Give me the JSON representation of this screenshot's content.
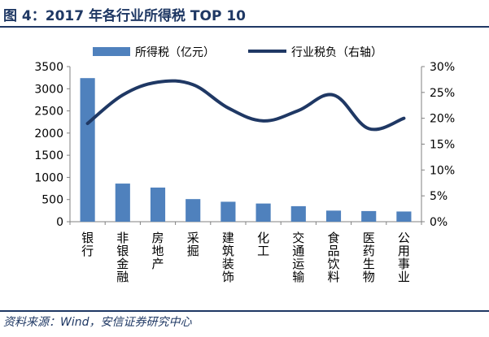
{
  "header": {
    "title": "图 4：2017 年各行业所得税 TOP 10"
  },
  "footer": {
    "source": "资料来源：Wind，安信证券研究中心"
  },
  "colors": {
    "bar": "#4f81bd",
    "line": "#1f3864",
    "header": "#1f3864",
    "axis_text": "#000000"
  },
  "chart_data": {
    "type": "bar",
    "title": "2017 年各行业所得税 TOP 10",
    "categories": [
      "银行",
      "非银金融",
      "房地产",
      "采掘",
      "建筑装饰",
      "化工",
      "交通运输",
      "食品饮料",
      "医药生物",
      "公用事业"
    ],
    "series": [
      {
        "name": "所得税（亿元）",
        "type": "bar",
        "axis": "left",
        "values": [
          3240,
          860,
          770,
          510,
          450,
          410,
          350,
          250,
          240,
          230
        ]
      },
      {
        "name": "行业税负（右轴）",
        "type": "line",
        "axis": "right",
        "unit": "%",
        "values": [
          19.0,
          24.5,
          27.0,
          26.5,
          22.0,
          19.5,
          21.5,
          24.5,
          18.0,
          20.0
        ]
      }
    ],
    "y_left": {
      "ylim": [
        0,
        3500
      ],
      "ticks": [
        0,
        500,
        1000,
        1500,
        2000,
        2500,
        3000,
        3500
      ]
    },
    "y_right": {
      "ylim": [
        0,
        30
      ],
      "ticks": [
        "0%",
        "5%",
        "10%",
        "15%",
        "20%",
        "25%",
        "30%"
      ]
    },
    "legend": {
      "position": "top",
      "items": [
        "所得税（亿元）",
        "行业税负（右轴）"
      ]
    },
    "grid": false
  }
}
